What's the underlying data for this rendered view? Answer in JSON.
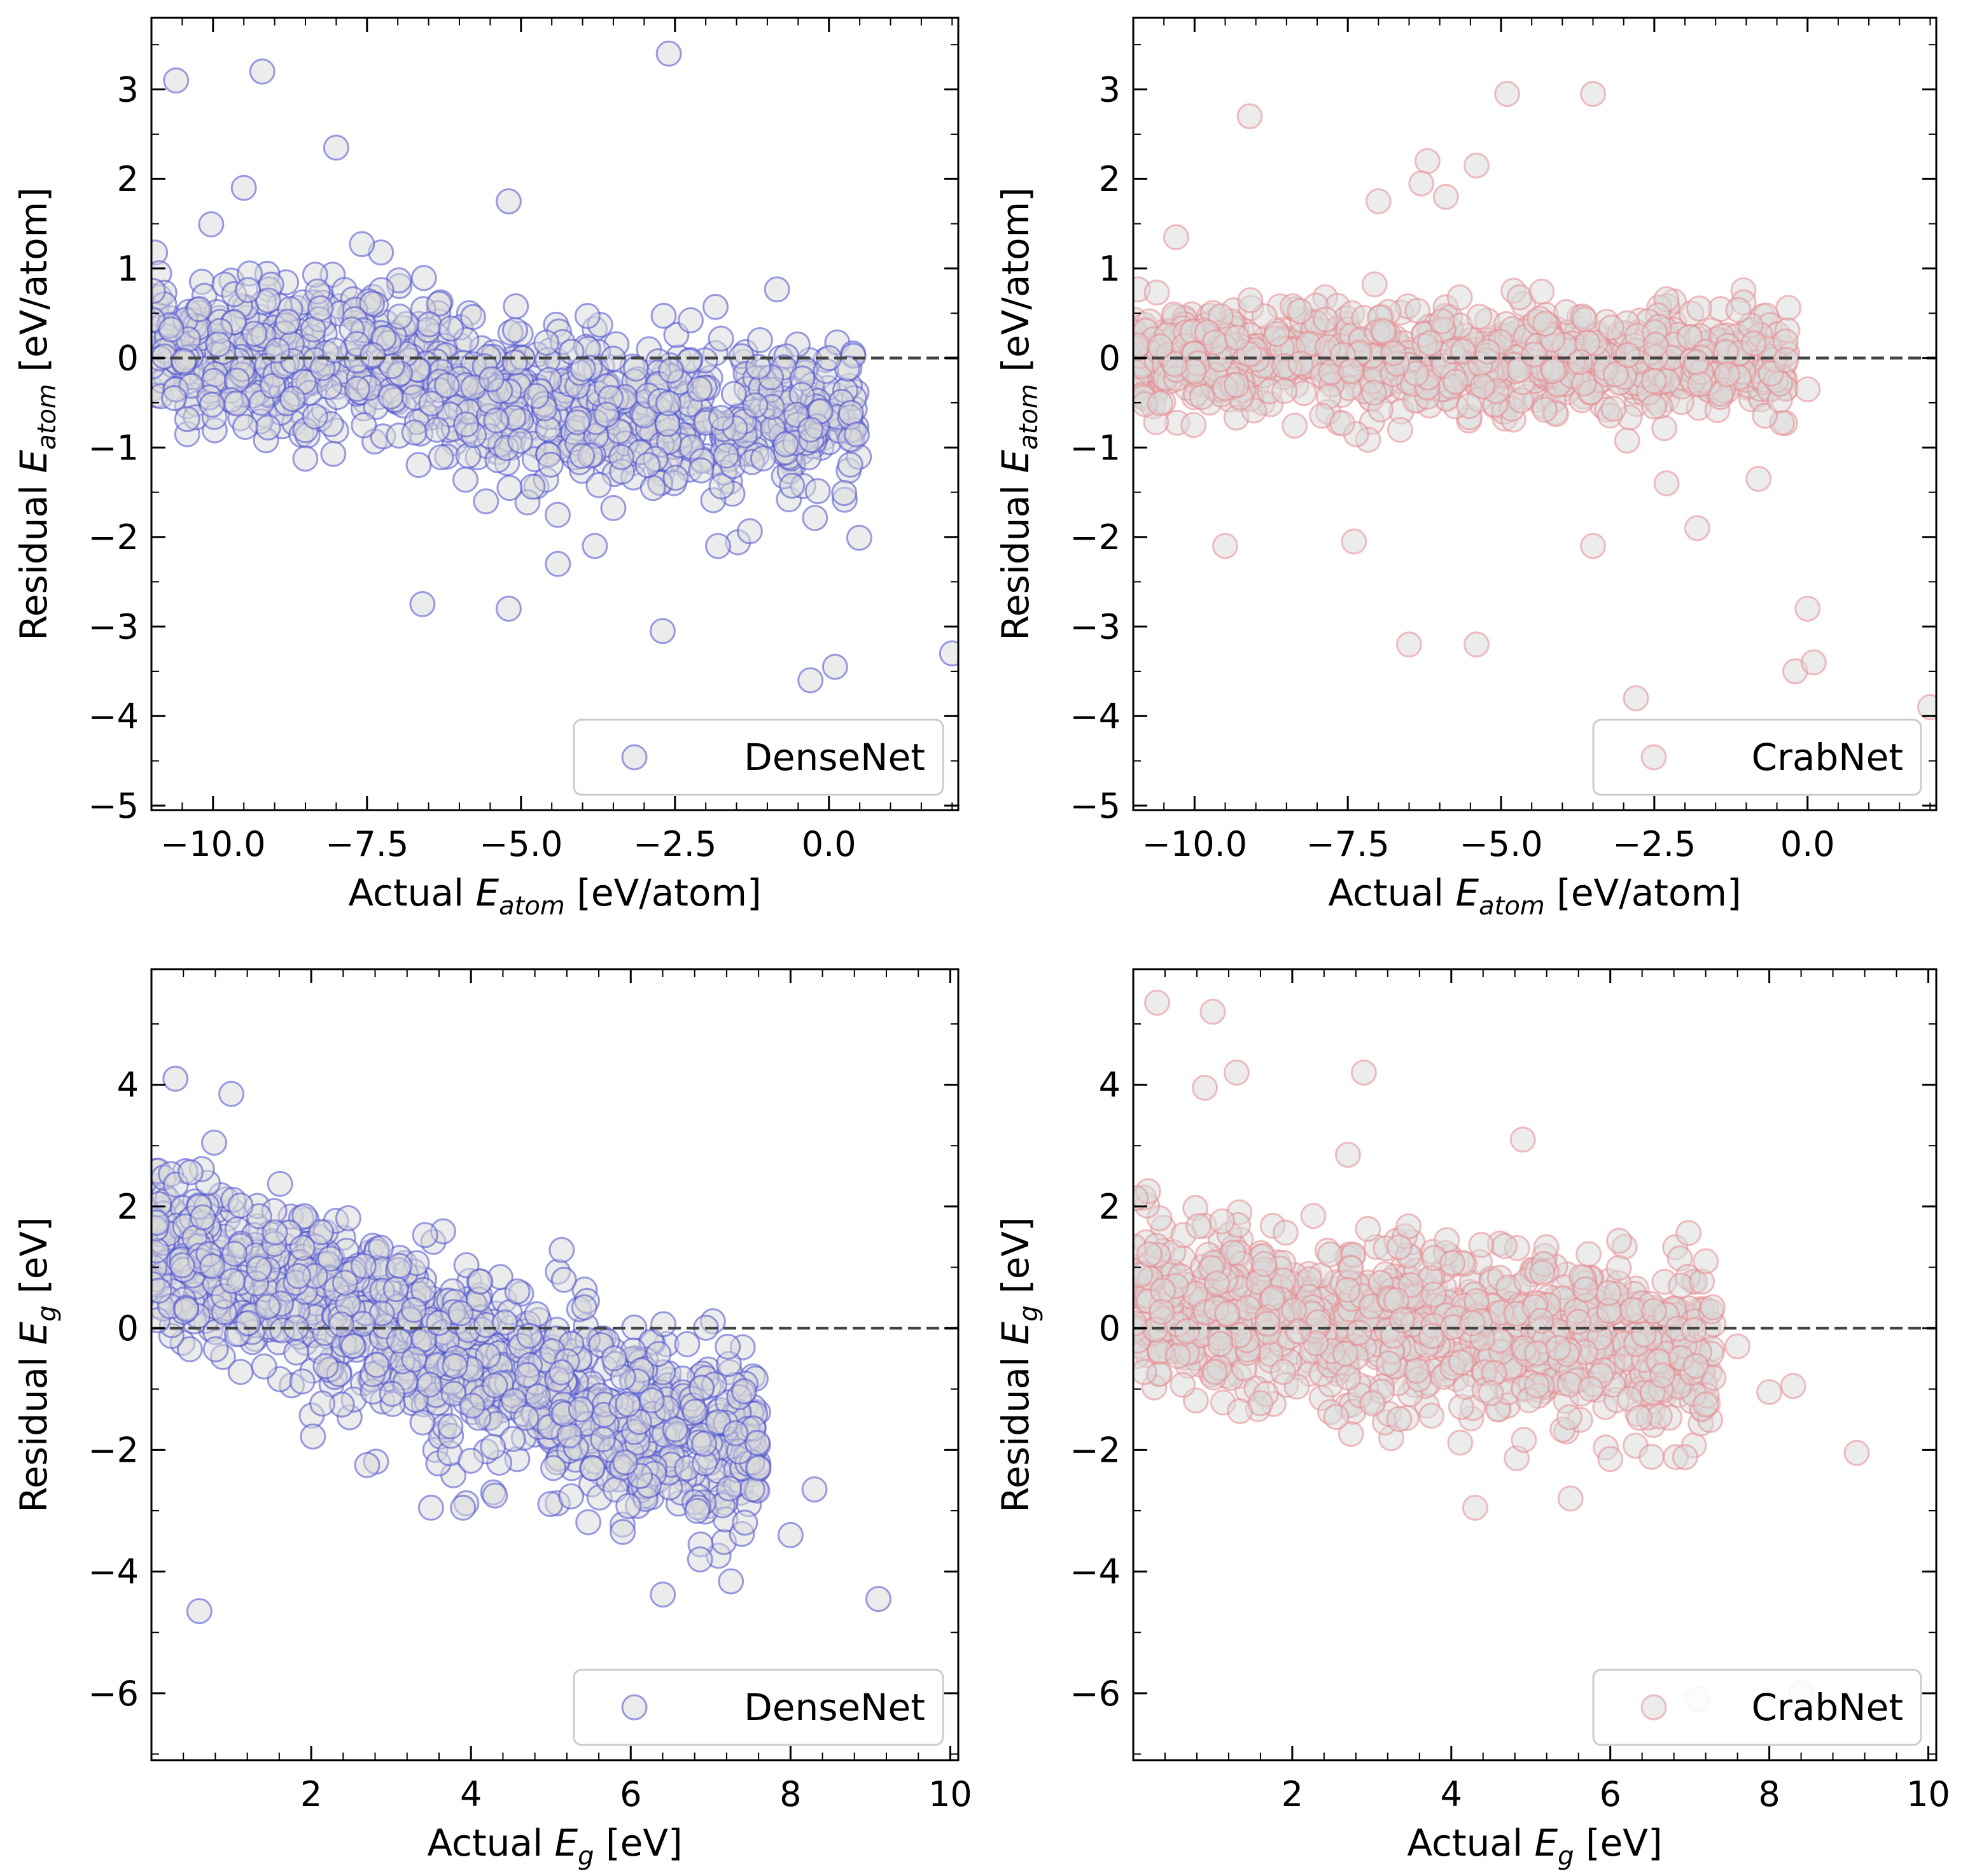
{
  "colors": {
    "densenet_edge": "#4a4fd0",
    "crabnet_edge": "#e88a90",
    "marker_face": "#d9d9d9",
    "zero_line": "#444444",
    "axes": "#000000"
  },
  "chart_data": [
    {
      "type": "scatter",
      "panel": "top-left",
      "xlabel": "Actual E_atom [eV/atom]",
      "ylabel": "Residual E_atom [eV/atom]",
      "xlim": [
        -11.0,
        2.1
      ],
      "ylim": [
        -5.05,
        3.8
      ],
      "xticks": [
        -10.0,
        -7.5,
        -5.0,
        -2.5,
        0.0
      ],
      "xtick_labels": [
        "−10.0",
        "−7.5",
        "−5.0",
        "−2.5",
        "0.0"
      ],
      "yticks": [
        -5,
        -4,
        -3,
        -2,
        -1,
        0,
        1,
        2,
        3
      ],
      "ytick_labels": [
        "−5",
        "−4",
        "−3",
        "−2",
        "−1",
        "0",
        "1",
        "2",
        "3"
      ],
      "zero_line": true,
      "legend": {
        "label": "DenseNet",
        "position": "lower right"
      },
      "series": [
        {
          "name": "DenseNet",
          "color_key": "densenet_edge",
          "cluster": {
            "count": 950,
            "x_range": [
              -11.0,
              0.5
            ],
            "base": 0.15,
            "slope": -0.06,
            "noise": 0.42,
            "tail_shift": -0.55,
            "tail_from": -6.2,
            "seed": 11
          },
          "outliers": [
            {
              "x": -10.6,
              "y": 3.1
            },
            {
              "x": -9.2,
              "y": 3.2
            },
            {
              "x": -8.0,
              "y": 2.35
            },
            {
              "x": -9.5,
              "y": 1.9
            },
            {
              "x": -5.2,
              "y": 1.75
            },
            {
              "x": -2.6,
              "y": 3.4
            },
            {
              "x": -6.6,
              "y": -2.75
            },
            {
              "x": -5.2,
              "y": -2.8
            },
            {
              "x": -2.7,
              "y": -3.05
            },
            {
              "x": -4.4,
              "y": -2.3
            },
            {
              "x": -3.8,
              "y": -2.1
            },
            {
              "x": -1.8,
              "y": -2.1
            },
            {
              "x": -0.3,
              "y": -3.6
            },
            {
              "x": 0.1,
              "y": -3.45
            },
            {
              "x": 2.0,
              "y": -3.3
            },
            {
              "x": 0.0,
              "y": 0.0
            },
            {
              "x": -0.3,
              "y": -0.8
            }
          ]
        }
      ]
    },
    {
      "type": "scatter",
      "panel": "top-right",
      "xlabel": "Actual E_atom [eV/atom]",
      "ylabel": "Residual E_atom [eV/atom]",
      "xlim": [
        -11.0,
        2.1
      ],
      "ylim": [
        -5.05,
        3.8
      ],
      "xticks": [
        -10.0,
        -7.5,
        -5.0,
        -2.5,
        0.0
      ],
      "xtick_labels": [
        "−10.0",
        "−7.5",
        "−5.0",
        "−2.5",
        "0.0"
      ],
      "yticks": [
        -5,
        -4,
        -3,
        -2,
        -1,
        0,
        1,
        2,
        3
      ],
      "ytick_labels": [
        "−5",
        "−4",
        "−3",
        "−2",
        "−1",
        "0",
        "1",
        "2",
        "3"
      ],
      "zero_line": true,
      "legend": {
        "label": "CrabNet",
        "position": "lower right"
      },
      "series": [
        {
          "name": "CrabNet",
          "color_key": "crabnet_edge",
          "cluster": {
            "count": 950,
            "x_range": [
              -11.0,
              -0.3
            ],
            "base": 0.0,
            "slope": 0.0,
            "noise": 0.28,
            "tail_shift": -0.15,
            "tail_from": -6.0,
            "seed": 23
          },
          "outliers": [
            {
              "x": -9.1,
              "y": 2.7
            },
            {
              "x": -4.9,
              "y": 2.95
            },
            {
              "x": -3.5,
              "y": 2.95
            },
            {
              "x": -6.2,
              "y": 2.2
            },
            {
              "x": -5.4,
              "y": 2.15
            },
            {
              "x": -6.3,
              "y": 1.95
            },
            {
              "x": -7.0,
              "y": 1.75
            },
            {
              "x": -5.9,
              "y": 1.8
            },
            {
              "x": -10.3,
              "y": 1.35
            },
            {
              "x": -9.5,
              "y": -2.1
            },
            {
              "x": -7.4,
              "y": -2.05
            },
            {
              "x": -3.5,
              "y": -2.1
            },
            {
              "x": -6.5,
              "y": -3.2
            },
            {
              "x": -5.4,
              "y": -3.2
            },
            {
              "x": -2.8,
              "y": -3.8
            },
            {
              "x": 0.0,
              "y": -2.8
            },
            {
              "x": -0.2,
              "y": -3.5
            },
            {
              "x": 0.1,
              "y": -3.4
            },
            {
              "x": 2.0,
              "y": -3.9
            },
            {
              "x": -1.8,
              "y": -1.9
            },
            {
              "x": -0.8,
              "y": -1.35
            },
            {
              "x": -2.3,
              "y": -1.4
            },
            {
              "x": 0.0,
              "y": -0.35
            }
          ]
        }
      ]
    },
    {
      "type": "scatter",
      "panel": "bottom-left",
      "xlabel": "Actual E_g [eV]",
      "ylabel": "Residual E_g [eV]",
      "xlim": [
        0.0,
        10.1
      ],
      "ylim": [
        -7.1,
        5.9
      ],
      "xticks": [
        2,
        4,
        6,
        8,
        10
      ],
      "xtick_labels": [
        "2",
        "4",
        "6",
        "8",
        "10"
      ],
      "yticks": [
        -6,
        -4,
        -2,
        0,
        2,
        4
      ],
      "ytick_labels": [
        "−6",
        "−4",
        "−2",
        "0",
        "2",
        "4"
      ],
      "zero_line": true,
      "legend": {
        "label": "DenseNet",
        "position": "lower right"
      },
      "series": [
        {
          "name": "DenseNet",
          "color_key": "densenet_edge",
          "cluster": {
            "count": 1100,
            "x_range": [
              0.0,
              7.6
            ],
            "base": 1.3,
            "slope": -0.45,
            "noise": 0.75,
            "tail_shift": 0.0,
            "tail_from": 99,
            "seed": 37
          },
          "outliers": [
            {
              "x": 0.6,
              "y": -4.65
            },
            {
              "x": 9.1,
              "y": -4.45
            },
            {
              "x": 0.3,
              "y": 4.1
            },
            {
              "x": 1.0,
              "y": 3.85
            },
            {
              "x": 8.0,
              "y": -3.4
            },
            {
              "x": 8.3,
              "y": -2.65
            },
            {
              "x": 5.9,
              "y": -3.35
            },
            {
              "x": 3.5,
              "y": -2.95
            },
            {
              "x": 3.9,
              "y": -2.95
            },
            {
              "x": 4.3,
              "y": -2.75
            },
            {
              "x": 2.7,
              "y": -2.25
            },
            {
              "x": 7.6,
              "y": -2.3
            }
          ]
        }
      ]
    },
    {
      "type": "scatter",
      "panel": "bottom-right",
      "xlabel": "Actual E_g [eV]",
      "ylabel": "Residual E_g [eV]",
      "xlim": [
        0.0,
        10.1
      ],
      "ylim": [
        -7.1,
        5.9
      ],
      "xticks": [
        2,
        4,
        6,
        8,
        10
      ],
      "xtick_labels": [
        "2",
        "4",
        "6",
        "8",
        "10"
      ],
      "yticks": [
        -6,
        -4,
        -2,
        0,
        2,
        4
      ],
      "ytick_labels": [
        "−6",
        "−4",
        "−2",
        "0",
        "2",
        "4"
      ],
      "zero_line": true,
      "legend": {
        "label": "CrabNet",
        "position": "lower right"
      },
      "series": [
        {
          "name": "CrabNet",
          "color_key": "crabnet_edge",
          "cluster": {
            "count": 1000,
            "x_range": [
              0.0,
              7.3
            ],
            "base": 0.45,
            "slope": -0.12,
            "noise": 0.7,
            "tail_shift": 0.0,
            "tail_from": 99,
            "seed": 53
          },
          "outliers": [
            {
              "x": 0.3,
              "y": 5.35
            },
            {
              "x": 1.0,
              "y": 5.2
            },
            {
              "x": 1.3,
              "y": 4.2
            },
            {
              "x": 2.9,
              "y": 4.2
            },
            {
              "x": 0.9,
              "y": 3.95
            },
            {
              "x": 4.9,
              "y": 3.1
            },
            {
              "x": 2.7,
              "y": 2.85
            },
            {
              "x": 9.1,
              "y": -2.05
            },
            {
              "x": 8.0,
              "y": -1.05
            },
            {
              "x": 8.3,
              "y": -0.95
            },
            {
              "x": 4.3,
              "y": -2.95
            },
            {
              "x": 5.5,
              "y": -2.8
            },
            {
              "x": 6.0,
              "y": -2.15
            },
            {
              "x": 7.6,
              "y": -0.3
            },
            {
              "x": 7.2,
              "y": 1.1
            },
            {
              "x": 7.1,
              "y": -6.1
            },
            {
              "x": 8.4,
              "y": -6.0
            }
          ]
        }
      ]
    }
  ]
}
